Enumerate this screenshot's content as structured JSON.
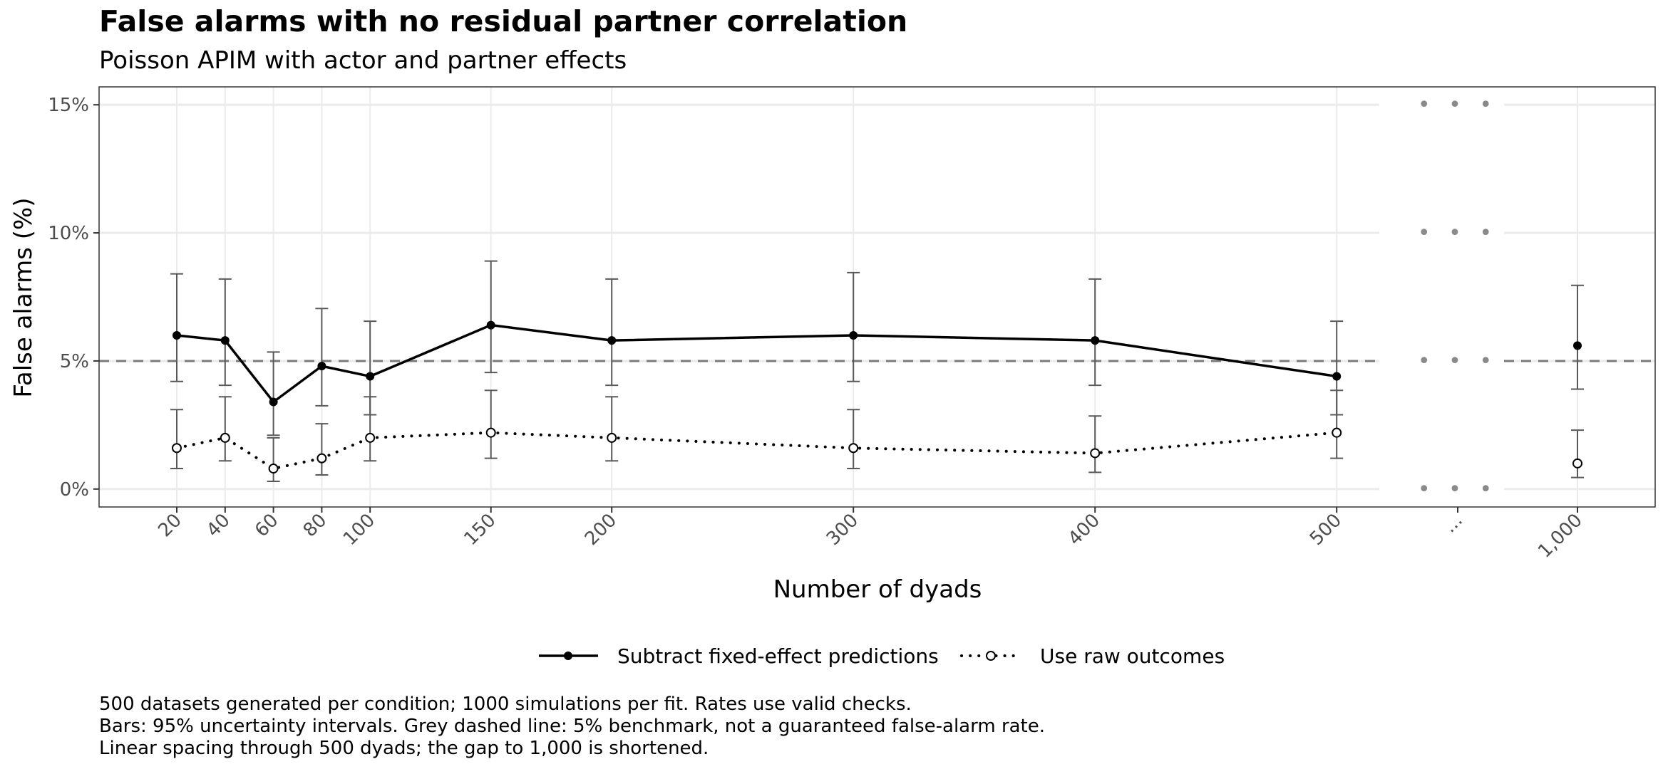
{
  "chart_data": {
    "type": "line",
    "title": "False alarms with no residual partner correlation",
    "subtitle": "Poisson APIM with actor and partner effects",
    "xlabel": "Number of dyads",
    "ylabel": "False alarms (%)",
    "ylim": [
      -0.7,
      15.7
    ],
    "y_ticks": [
      {
        "value": 0,
        "label": "0%"
      },
      {
        "value": 5,
        "label": "5%"
      },
      {
        "value": 10,
        "label": "10%"
      },
      {
        "value": 15,
        "label": "15%"
      }
    ],
    "x_ticks": [
      {
        "value": 20,
        "label": "20"
      },
      {
        "value": 40,
        "label": "40"
      },
      {
        "value": 60,
        "label": "60"
      },
      {
        "value": 80,
        "label": "80"
      },
      {
        "value": 100,
        "label": "100"
      },
      {
        "value": 150,
        "label": "150"
      },
      {
        "value": 200,
        "label": "200"
      },
      {
        "value": 300,
        "label": "300"
      },
      {
        "value": 400,
        "label": "400"
      },
      {
        "value": 500,
        "label": "500"
      },
      {
        "value": "gap",
        "label": "..."
      },
      {
        "value": 1000,
        "label": "1,000"
      }
    ],
    "benchmark": 5,
    "grid": true,
    "legend_position": "bottom",
    "series": [
      {
        "name": "Subtract fixed-effect predictions",
        "marker": "filled",
        "line": "solid",
        "color": "#000000",
        "points": [
          {
            "x": 20,
            "y": 6.0,
            "lo": 4.2,
            "hi": 8.4
          },
          {
            "x": 40,
            "y": 5.8,
            "lo": 4.05,
            "hi": 8.2
          },
          {
            "x": 60,
            "y": 3.4,
            "lo": 2.1,
            "hi": 5.35
          },
          {
            "x": 80,
            "y": 4.8,
            "lo": 3.25,
            "hi": 7.05
          },
          {
            "x": 100,
            "y": 4.4,
            "lo": 2.9,
            "hi": 6.55
          },
          {
            "x": 150,
            "y": 6.4,
            "lo": 4.55,
            "hi": 8.9
          },
          {
            "x": 200,
            "y": 5.8,
            "lo": 4.05,
            "hi": 8.2
          },
          {
            "x": 300,
            "y": 6.0,
            "lo": 4.2,
            "hi": 8.45
          },
          {
            "x": 400,
            "y": 5.8,
            "lo": 4.05,
            "hi": 8.2
          },
          {
            "x": 500,
            "y": 4.4,
            "lo": 2.9,
            "hi": 6.55
          },
          {
            "x": 1000,
            "y": 5.6,
            "lo": 3.9,
            "hi": 7.95,
            "connected": false
          }
        ]
      },
      {
        "name": "Use raw outcomes",
        "marker": "open",
        "line": "dotted",
        "color": "#000000",
        "points": [
          {
            "x": 20,
            "y": 1.6,
            "lo": 0.8,
            "hi": 3.1
          },
          {
            "x": 40,
            "y": 2.0,
            "lo": 1.1,
            "hi": 3.6
          },
          {
            "x": 60,
            "y": 0.8,
            "lo": 0.3,
            "hi": 2.0
          },
          {
            "x": 80,
            "y": 1.2,
            "lo": 0.55,
            "hi": 2.55
          },
          {
            "x": 100,
            "y": 2.0,
            "lo": 1.1,
            "hi": 3.6
          },
          {
            "x": 150,
            "y": 2.2,
            "lo": 1.2,
            "hi": 3.85
          },
          {
            "x": 200,
            "y": 2.0,
            "lo": 1.1,
            "hi": 3.6
          },
          {
            "x": 300,
            "y": 1.6,
            "lo": 0.8,
            "hi": 3.1
          },
          {
            "x": 400,
            "y": 1.4,
            "lo": 0.65,
            "hi": 2.85
          },
          {
            "x": 500,
            "y": 2.2,
            "lo": 1.2,
            "hi": 3.85
          },
          {
            "x": 1000,
            "y": 1.0,
            "lo": 0.45,
            "hi": 2.3,
            "connected": false
          }
        ]
      }
    ],
    "gap_marker": "• • •",
    "caption": [
      "500 datasets generated per condition; 1000 simulations per fit. Rates use valid checks.",
      "Bars: 95% uncertainty intervals. Grey dashed line: 5% benchmark, not a guaranteed false-alarm rate.",
      "Linear spacing through 500 dyads; the gap to 1,000 is shortened."
    ]
  }
}
